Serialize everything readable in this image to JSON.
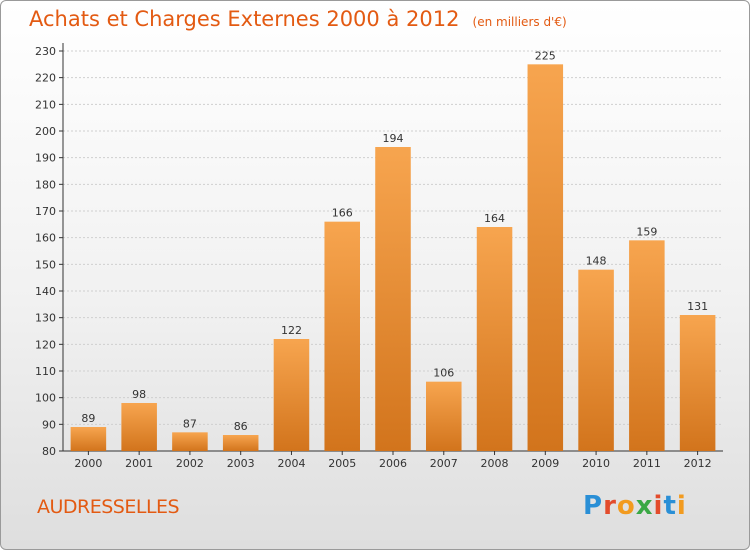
{
  "header": {
    "title": "Achats et Charges Externes 2000 à 2012",
    "unit": "(en milliers d'€)"
  },
  "footer": {
    "commune": "AUDRESSELLES",
    "logo_text": "Proxiti",
    "logo_colors": [
      "#2a8fd6",
      "#e34c2c",
      "#f29b1f",
      "#3aa845",
      "#e34c2c",
      "#2a8fd6",
      "#f29b1f"
    ]
  },
  "colors": {
    "title": "#e35a12",
    "bar_light": "#f7a54f",
    "bar_dark": "#d2741c",
    "axis": "#333333"
  },
  "chart_data": {
    "type": "bar",
    "categories": [
      "2000",
      "2001",
      "2002",
      "2003",
      "2004",
      "2005",
      "2006",
      "2007",
      "2008",
      "2009",
      "2010",
      "2011",
      "2012"
    ],
    "values": [
      89,
      98,
      87,
      86,
      122,
      166,
      194,
      106,
      164,
      225,
      148,
      159,
      131
    ],
    "title": "Achats et Charges Externes 2000 à 2012",
    "ylim": [
      80,
      230
    ],
    "yticks": [
      80,
      90,
      100,
      110,
      120,
      130,
      140,
      150,
      160,
      170,
      180,
      190,
      200,
      210,
      220,
      230
    ],
    "grid": true,
    "legend": "none",
    "data_labels": true
  }
}
